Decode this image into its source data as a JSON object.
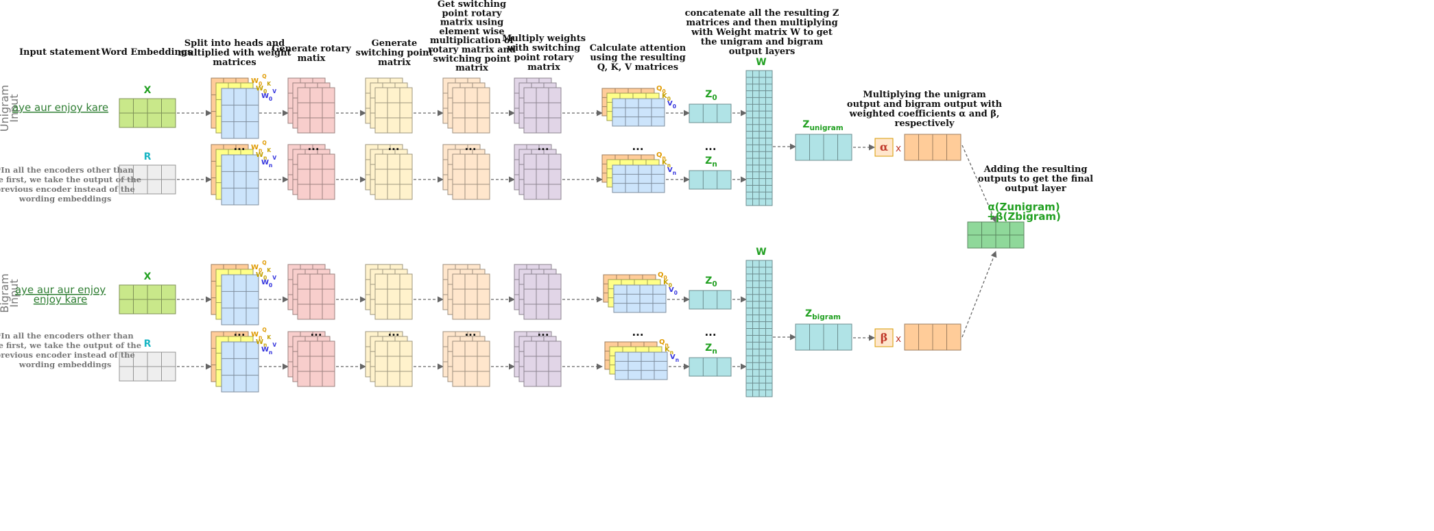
{
  "headers": {
    "input_statement": [
      "Input statement"
    ],
    "word_embeddings": [
      "Word Embeddings"
    ],
    "split_heads": [
      "Split into heads and",
      "multiplied with weight",
      "matrices"
    ],
    "rotary": [
      "Generate rotary",
      "matix"
    ],
    "switching": [
      "Generate",
      "switching point",
      "matrix"
    ],
    "switching_rotary": [
      "Get switching",
      "point rotary",
      "matrix using",
      "element wise",
      "multiplication of",
      "rotary matrix and",
      "switching point",
      "matrix"
    ],
    "multiply_weights": [
      "Multiply weights",
      "with switching",
      "point rotary",
      "matrix"
    ],
    "attention": [
      "Calculate attention",
      "using the resulting",
      "Q, K, V matrices"
    ],
    "concat": [
      "concatenate all the resulting Z",
      "matrices and then multiplying",
      "with Weight matrix W to get",
      "the unigram and bigram",
      "output layers"
    ],
    "weighting": [
      "Multiplying the unigram",
      "output and bigram output with",
      "weighted coefficients α and β,",
      "respectively"
    ],
    "adding": [
      "Adding the resulting",
      "outputs to get the final",
      "output layer"
    ]
  },
  "unigram": {
    "side_label": [
      "Unigram",
      "Input"
    ],
    "words": [
      "aye",
      "aur",
      "enjoy",
      "kare"
    ],
    "z_output": "Zunigram",
    "coefficient": "α"
  },
  "bigram": {
    "side_label": [
      "Bigram",
      "Input"
    ],
    "words_line1": [
      "aye aur",
      "aur enjoy"
    ],
    "words_line2": [
      "enjoy kare"
    ],
    "z_output": "Zbigram",
    "coefficient": "β"
  },
  "note": [
    "*In all the encoders  other than",
    "the first, we take the output of the",
    "previous encoder instead of the",
    "wording embeddings"
  ],
  "labels": {
    "x": "X",
    "r": "R",
    "w": "W",
    "z0": "Z0",
    "zn": "Zn",
    "ellipsis": "...",
    "times": "x"
  },
  "formula": [
    "α(Zunigram)",
    "+β(Zbigram)"
  ],
  "colors": {
    "green": "#c9e88a",
    "gray": "#eeeeee",
    "blue": "#cce4fb",
    "red": "#f8cecc",
    "cream": "#fff2cc",
    "peach": "#ffe6cc",
    "purple": "#e1d5e7",
    "teal": "#b0e3e6",
    "orange": "#ffcc99",
    "yellow": "#ffff88",
    "final": "#8fd89a"
  }
}
